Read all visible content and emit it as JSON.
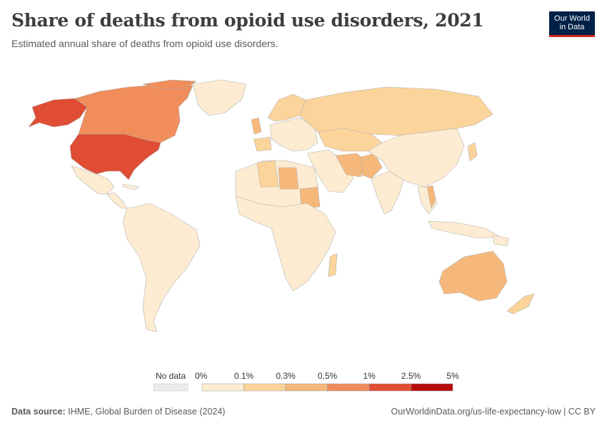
{
  "header": {
    "title": "Share of deaths from opioid use disorders, 2021",
    "subtitle": "Estimated annual share of deaths from opioid use disorders."
  },
  "logo": {
    "line1": "Our World",
    "line2": "in Data"
  },
  "legend": {
    "no_data_label": "No data",
    "bins": [
      "0%",
      "0.1%",
      "0.3%",
      "0.5%",
      "1%",
      "2.5%",
      "5%"
    ],
    "colors": [
      "#fdecd2",
      "#fbd49b",
      "#f6b87a",
      "#f08d5a",
      "#df4d34",
      "#b70b0b"
    ],
    "no_data_color": "#e6e6e6"
  },
  "footer": {
    "source_label": "Data source:",
    "source_text": "IHME, Global Burden of Disease (2024)",
    "url_text": "OurWorldinData.org/us-life-expectancy-low | CC BY"
  },
  "colors": {
    "bin0": "#fdecd2",
    "bin1": "#fbd49b",
    "bin2": "#f6b87a",
    "bin3": "#f08d5a",
    "bin4": "#df4d34",
    "border": "#b3b3b3"
  }
}
